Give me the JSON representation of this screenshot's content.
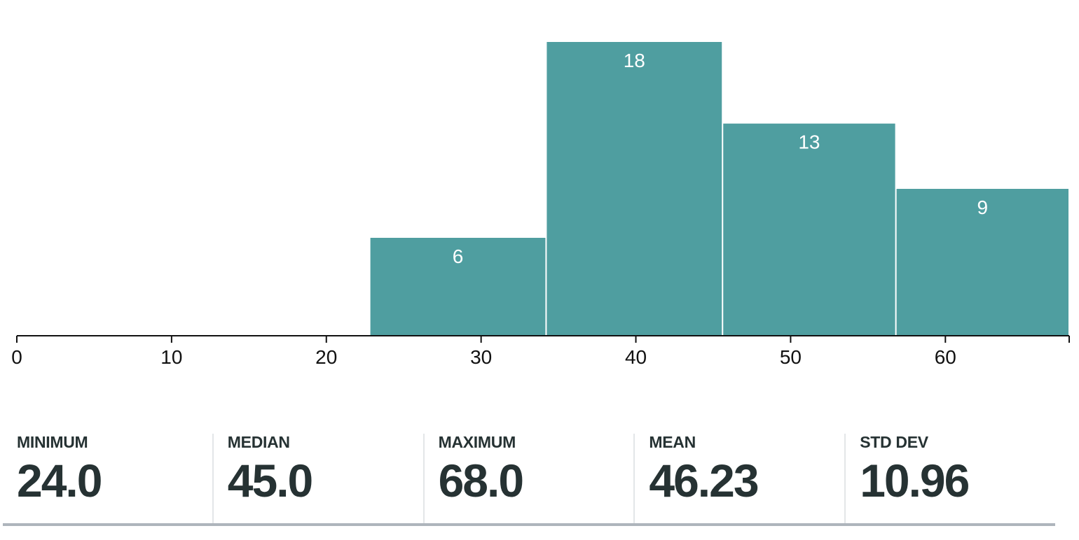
{
  "chart_data": {
    "type": "bar",
    "subtype": "histogram",
    "bins": [
      {
        "start": 22.8,
        "end": 34.2,
        "count": 6
      },
      {
        "start": 34.2,
        "end": 45.6,
        "count": 18
      },
      {
        "start": 45.6,
        "end": 56.8,
        "count": 13
      },
      {
        "start": 56.8,
        "end": 68.0,
        "count": 9
      }
    ],
    "x_ticks": [
      "0",
      "10",
      "20",
      "30",
      "40",
      "50",
      "60"
    ],
    "xlim": [
      0,
      68
    ],
    "ylim": [
      0,
      18
    ],
    "bar_color": "#4f9ea0",
    "grid": false,
    "legend": "none"
  },
  "stats": [
    {
      "label": "MINIMUM",
      "value": "24.0"
    },
    {
      "label": "MEDIAN",
      "value": "45.0"
    },
    {
      "label": "MAXIMUM",
      "value": "68.0"
    },
    {
      "label": "MEAN",
      "value": "46.23"
    },
    {
      "label": "STD DEV",
      "value": "10.96"
    }
  ]
}
